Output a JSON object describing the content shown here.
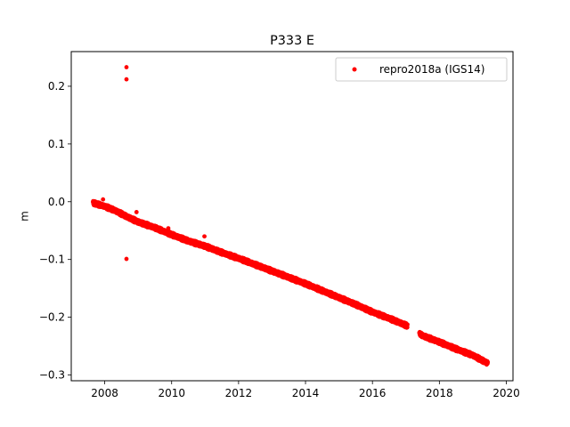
{
  "chart_data": {
    "type": "scatter",
    "title": "P333 E",
    "xlabel": "",
    "ylabel": "m",
    "xlim": [
      2007.0,
      2020.2
    ],
    "ylim": [
      -0.31,
      0.26
    ],
    "xticks": [
      2008,
      2010,
      2012,
      2014,
      2016,
      2018,
      2020
    ],
    "xtick_labels": [
      "2008",
      "2010",
      "2012",
      "2014",
      "2016",
      "2018",
      "2020"
    ],
    "yticks": [
      -0.3,
      -0.2,
      -0.1,
      0.0,
      0.1,
      0.2
    ],
    "ytick_labels": [
      "−0.3",
      "−0.2",
      "−0.1",
      "0.0",
      "0.1",
      "0.2"
    ],
    "grid": false,
    "legend_position": "top-right",
    "series": [
      {
        "name": "repro2018a (IGS14)",
        "color": "#ff0000",
        "marker": "circle",
        "trend": {
          "x": [
            2007.65,
            2008.0,
            2008.3,
            2008.7,
            2009.0,
            2009.5,
            2010.0,
            2010.5,
            2011.0,
            2011.5,
            2012.0,
            2012.5,
            2013.0,
            2013.5,
            2014.0,
            2014.5,
            2015.0,
            2015.5,
            2016.0,
            2016.5,
            2017.0,
            2017.2,
            2017.5,
            2018.0,
            2018.5,
            2019.0,
            2019.45
          ],
          "y": [
            -0.002,
            -0.008,
            -0.015,
            -0.027,
            -0.035,
            -0.045,
            -0.057,
            -0.068,
            -0.077,
            -0.088,
            -0.098,
            -0.109,
            -0.12,
            -0.131,
            -0.142,
            -0.154,
            -0.166,
            -0.178,
            -0.191,
            -0.202,
            -0.214,
            -0.22,
            -0.232,
            -0.243,
            -0.255,
            -0.266,
            -0.28
          ]
        },
        "gaps": [
          [
            2017.05,
            2017.4
          ]
        ],
        "outliers": [
          {
            "x": 2008.65,
            "y": 0.233
          },
          {
            "x": 2008.65,
            "y": 0.212
          },
          {
            "x": 2008.65,
            "y": -0.099
          },
          {
            "x": 2008.95,
            "y": -0.018
          },
          {
            "x": 2009.9,
            "y": -0.046
          },
          {
            "x": 2010.98,
            "y": -0.06
          },
          {
            "x": 2007.95,
            "y": 0.004
          }
        ]
      }
    ]
  }
}
